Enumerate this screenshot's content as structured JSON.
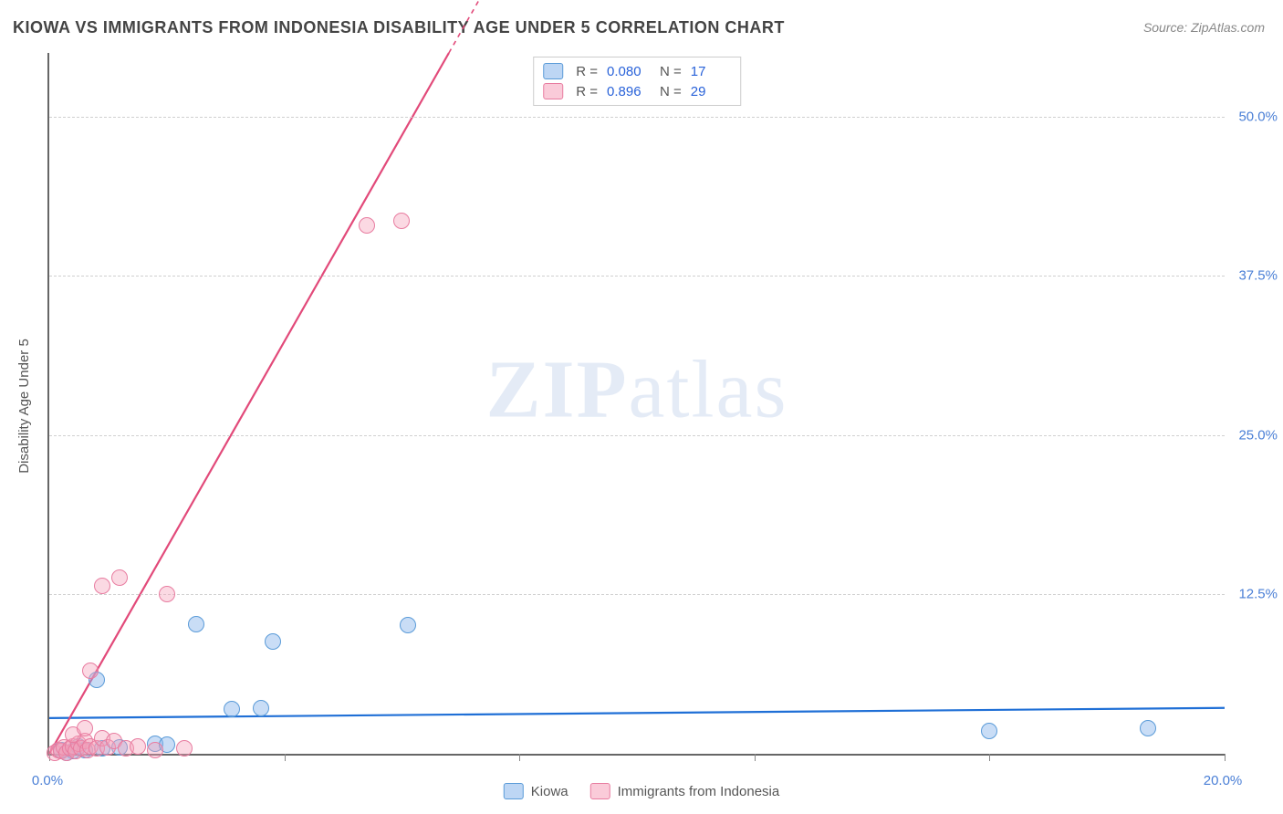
{
  "title": "KIOWA VS IMMIGRANTS FROM INDONESIA DISABILITY AGE UNDER 5 CORRELATION CHART",
  "source": "Source: ZipAtlas.com",
  "y_axis_label": "Disability Age Under 5",
  "watermark_a": "ZIP",
  "watermark_b": "atlas",
  "chart": {
    "type": "scatter",
    "xlim": [
      0,
      20
    ],
    "ylim": [
      0,
      55
    ],
    "x_ticks": [
      0,
      4,
      8,
      12,
      16,
      20
    ],
    "x_tick_labels": [
      "0.0%",
      "",
      "",
      "",
      "",
      "20.0%"
    ],
    "y_ticks": [
      12.5,
      25.0,
      37.5,
      50.0
    ],
    "y_tick_labels": [
      "12.5%",
      "25.0%",
      "37.5%",
      "50.0%"
    ],
    "grid_color": "#d0d0d0",
    "background_color": "#ffffff",
    "marker_radius": 9,
    "series": [
      {
        "name": "Kiowa",
        "color_fill": "rgba(135,180,235,0.45)",
        "color_stroke": "#5a9bd8",
        "trend_color": "#1f6fd6",
        "R": "0.080",
        "N": "17",
        "trend": {
          "x1": 0,
          "y1": 2.8,
          "x2": 20,
          "y2": 3.6
        },
        "points": [
          [
            0.2,
            0.3
          ],
          [
            0.4,
            0.2
          ],
          [
            0.5,
            0.6
          ],
          [
            0.6,
            0.3
          ],
          [
            0.9,
            0.4
          ],
          [
            1.2,
            0.5
          ],
          [
            0.8,
            5.8
          ],
          [
            1.8,
            0.8
          ],
          [
            2.0,
            0.7
          ],
          [
            2.5,
            10.2
          ],
          [
            3.1,
            3.5
          ],
          [
            3.8,
            8.8
          ],
          [
            3.6,
            3.6
          ],
          [
            6.1,
            10.1
          ],
          [
            16.0,
            1.8
          ],
          [
            18.7,
            2.0
          ],
          [
            0.3,
            0.1
          ]
        ]
      },
      {
        "name": "Immigrants from Indonesia",
        "color_fill": "rgba(245,160,185,0.40)",
        "color_stroke": "#e87ca0",
        "trend_color": "#e24a7a",
        "R": "0.896",
        "N": "29",
        "trend": {
          "x1": 0,
          "y1": 0.0,
          "x2": 6.8,
          "y2": 55.0
        },
        "points": [
          [
            0.1,
            0.1
          ],
          [
            0.15,
            0.3
          ],
          [
            0.2,
            0.2
          ],
          [
            0.25,
            0.5
          ],
          [
            0.3,
            0.1
          ],
          [
            0.35,
            0.4
          ],
          [
            0.4,
            0.6
          ],
          [
            0.45,
            0.2
          ],
          [
            0.5,
            0.8
          ],
          [
            0.55,
            0.4
          ],
          [
            0.6,
            1.0
          ],
          [
            0.65,
            0.3
          ],
          [
            0.7,
            0.6
          ],
          [
            0.8,
            0.4
          ],
          [
            0.9,
            1.2
          ],
          [
            1.0,
            0.5
          ],
          [
            1.1,
            1.0
          ],
          [
            1.3,
            0.4
          ],
          [
            1.5,
            0.6
          ],
          [
            1.8,
            0.3
          ],
          [
            2.3,
            0.4
          ],
          [
            0.7,
            6.5
          ],
          [
            0.9,
            13.2
          ],
          [
            1.2,
            13.8
          ],
          [
            2.0,
            12.5
          ],
          [
            5.4,
            41.5
          ],
          [
            6.0,
            41.8
          ],
          [
            0.4,
            1.5
          ],
          [
            0.6,
            2.0
          ]
        ]
      }
    ]
  },
  "legend_bottom": [
    {
      "swatch": "blue",
      "label": "Kiowa"
    },
    {
      "swatch": "pink",
      "label": "Immigrants from Indonesia"
    }
  ]
}
